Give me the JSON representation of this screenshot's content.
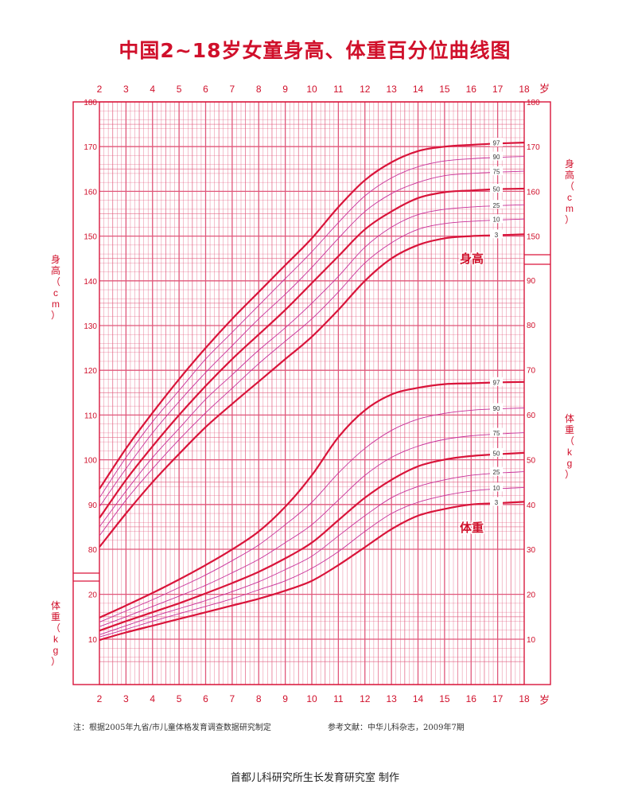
{
  "title": "中国2~18岁女童身高、体重百分位曲线图",
  "note": "注：根据2005年九省/市儿童体格发育调查数据研究制定",
  "reference": "参考文献：中华儿科杂志，2009年7期",
  "footer": "首都儿科研究所生长发育研究室  制作",
  "colors": {
    "grid": "#e0577a",
    "curve": "#d9143a",
    "thin_curve": "#c8309a",
    "text": "#d0102b"
  },
  "chart_data": {
    "type": "line",
    "x_unit": "岁",
    "x_ticks": [
      2,
      3,
      4,
      5,
      6,
      7,
      8,
      9,
      10,
      11,
      12,
      13,
      14,
      15,
      16,
      17,
      18
    ],
    "xlim": [
      2,
      18
    ],
    "height": {
      "label": "身高",
      "axis_label": "身高（cm）",
      "ylim": [
        80,
        180
      ],
      "y_ticks_left": [
        80,
        90,
        100,
        110,
        120,
        130,
        140,
        150,
        160,
        170,
        180
      ],
      "y_ticks_right": [
        150,
        160,
        170,
        180
      ],
      "x": [
        2,
        3,
        4,
        5,
        6,
        7,
        8,
        9,
        10,
        11,
        12,
        13,
        14,
        15,
        16,
        17,
        18
      ],
      "series": [
        {
          "name": "3",
          "bold": true,
          "values": [
            80.5,
            88.0,
            95.0,
            101.3,
            107.3,
            112.5,
            117.5,
            122.5,
            127.5,
            133.5,
            140.0,
            145.0,
            148.0,
            149.5,
            150.0,
            150.2,
            150.4
          ]
        },
        {
          "name": "10",
          "bold": false,
          "values": [
            83.0,
            91.0,
            98.0,
            104.5,
            110.5,
            116.0,
            121.5,
            126.5,
            131.5,
            137.5,
            144.0,
            148.5,
            151.5,
            152.8,
            153.3,
            153.6,
            153.8
          ]
        },
        {
          "name": "25",
          "bold": false,
          "values": [
            85.0,
            93.0,
            100.5,
            107.0,
            113.5,
            119.0,
            124.5,
            129.5,
            135.0,
            141.0,
            147.5,
            152.0,
            154.8,
            156.0,
            156.5,
            156.8,
            157.0
          ]
        },
        {
          "name": "50",
          "bold": true,
          "values": [
            87.0,
            95.5,
            103.0,
            110.0,
            116.5,
            122.5,
            128.0,
            133.5,
            139.5,
            145.5,
            151.5,
            155.5,
            158.5,
            159.8,
            160.2,
            160.5,
            160.6
          ]
        },
        {
          "name": "75",
          "bold": false,
          "values": [
            89.5,
            98.0,
            106.0,
            113.0,
            119.5,
            125.5,
            131.5,
            137.0,
            143.0,
            149.5,
            155.5,
            159.5,
            162.0,
            163.5,
            164.0,
            164.3,
            164.5
          ]
        },
        {
          "name": "90",
          "bold": false,
          "values": [
            91.5,
            100.5,
            108.5,
            115.5,
            122.5,
            128.5,
            134.5,
            140.5,
            146.5,
            153.0,
            159.0,
            163.0,
            165.5,
            166.8,
            167.3,
            167.6,
            167.8
          ]
        },
        {
          "name": "97",
          "bold": true,
          "values": [
            93.5,
            102.5,
            110.5,
            118.0,
            125.0,
            131.5,
            137.5,
            143.5,
            149.5,
            156.5,
            162.5,
            166.5,
            169.0,
            170.0,
            170.4,
            170.7,
            170.9
          ]
        }
      ]
    },
    "weight": {
      "label": "体重",
      "axis_label": "体重（kg）",
      "ylim": [
        5,
        95
      ],
      "y_ticks_left": [
        10,
        20
      ],
      "y_ticks_right": [
        10,
        20,
        30,
        40,
        50,
        60,
        70,
        80,
        90
      ],
      "x": [
        2,
        3,
        4,
        5,
        6,
        7,
        8,
        9,
        10,
        11,
        12,
        13,
        14,
        15,
        16,
        17,
        18
      ],
      "series": [
        {
          "name": "3",
          "bold": true,
          "values": [
            9.8,
            11.5,
            13.0,
            14.5,
            16.0,
            17.5,
            19.0,
            20.8,
            23.0,
            26.5,
            30.5,
            34.5,
            37.5,
            39.0,
            40.0,
            40.3,
            40.6
          ]
        },
        {
          "name": "10",
          "bold": false,
          "values": [
            10.5,
            12.2,
            14.0,
            15.7,
            17.3,
            19.0,
            21.0,
            23.0,
            25.8,
            29.5,
            34.0,
            38.0,
            40.5,
            42.0,
            43.0,
            43.5,
            43.8
          ]
        },
        {
          "name": "25",
          "bold": false,
          "values": [
            11.0,
            13.0,
            15.0,
            16.8,
            18.6,
            20.6,
            22.8,
            25.5,
            28.5,
            33.0,
            37.5,
            41.5,
            44.0,
            45.5,
            46.5,
            47.0,
            47.3
          ]
        },
        {
          "name": "50",
          "bold": true,
          "values": [
            11.9,
            14.0,
            16.0,
            18.0,
            20.2,
            22.5,
            25.0,
            28.0,
            31.5,
            36.5,
            41.5,
            45.5,
            48.5,
            50.0,
            50.8,
            51.2,
            51.5
          ]
        },
        {
          "name": "75",
          "bold": false,
          "values": [
            12.8,
            15.0,
            17.3,
            19.6,
            22.0,
            24.8,
            27.8,
            31.5,
            35.5,
            41.0,
            46.5,
            50.5,
            53.0,
            54.5,
            55.3,
            55.7,
            56.0
          ]
        },
        {
          "name": "90",
          "bold": false,
          "values": [
            13.8,
            16.3,
            18.8,
            21.5,
            24.3,
            27.5,
            31.0,
            35.5,
            40.5,
            47.0,
            52.5,
            56.5,
            59.0,
            60.3,
            61.0,
            61.3,
            61.5
          ]
        },
        {
          "name": "97",
          "bold": true,
          "values": [
            14.8,
            17.5,
            20.3,
            23.3,
            26.5,
            30.0,
            34.0,
            39.5,
            46.5,
            55.0,
            61.0,
            64.5,
            66.0,
            66.8,
            67.0,
            67.2,
            67.3
          ]
        }
      ]
    }
  }
}
